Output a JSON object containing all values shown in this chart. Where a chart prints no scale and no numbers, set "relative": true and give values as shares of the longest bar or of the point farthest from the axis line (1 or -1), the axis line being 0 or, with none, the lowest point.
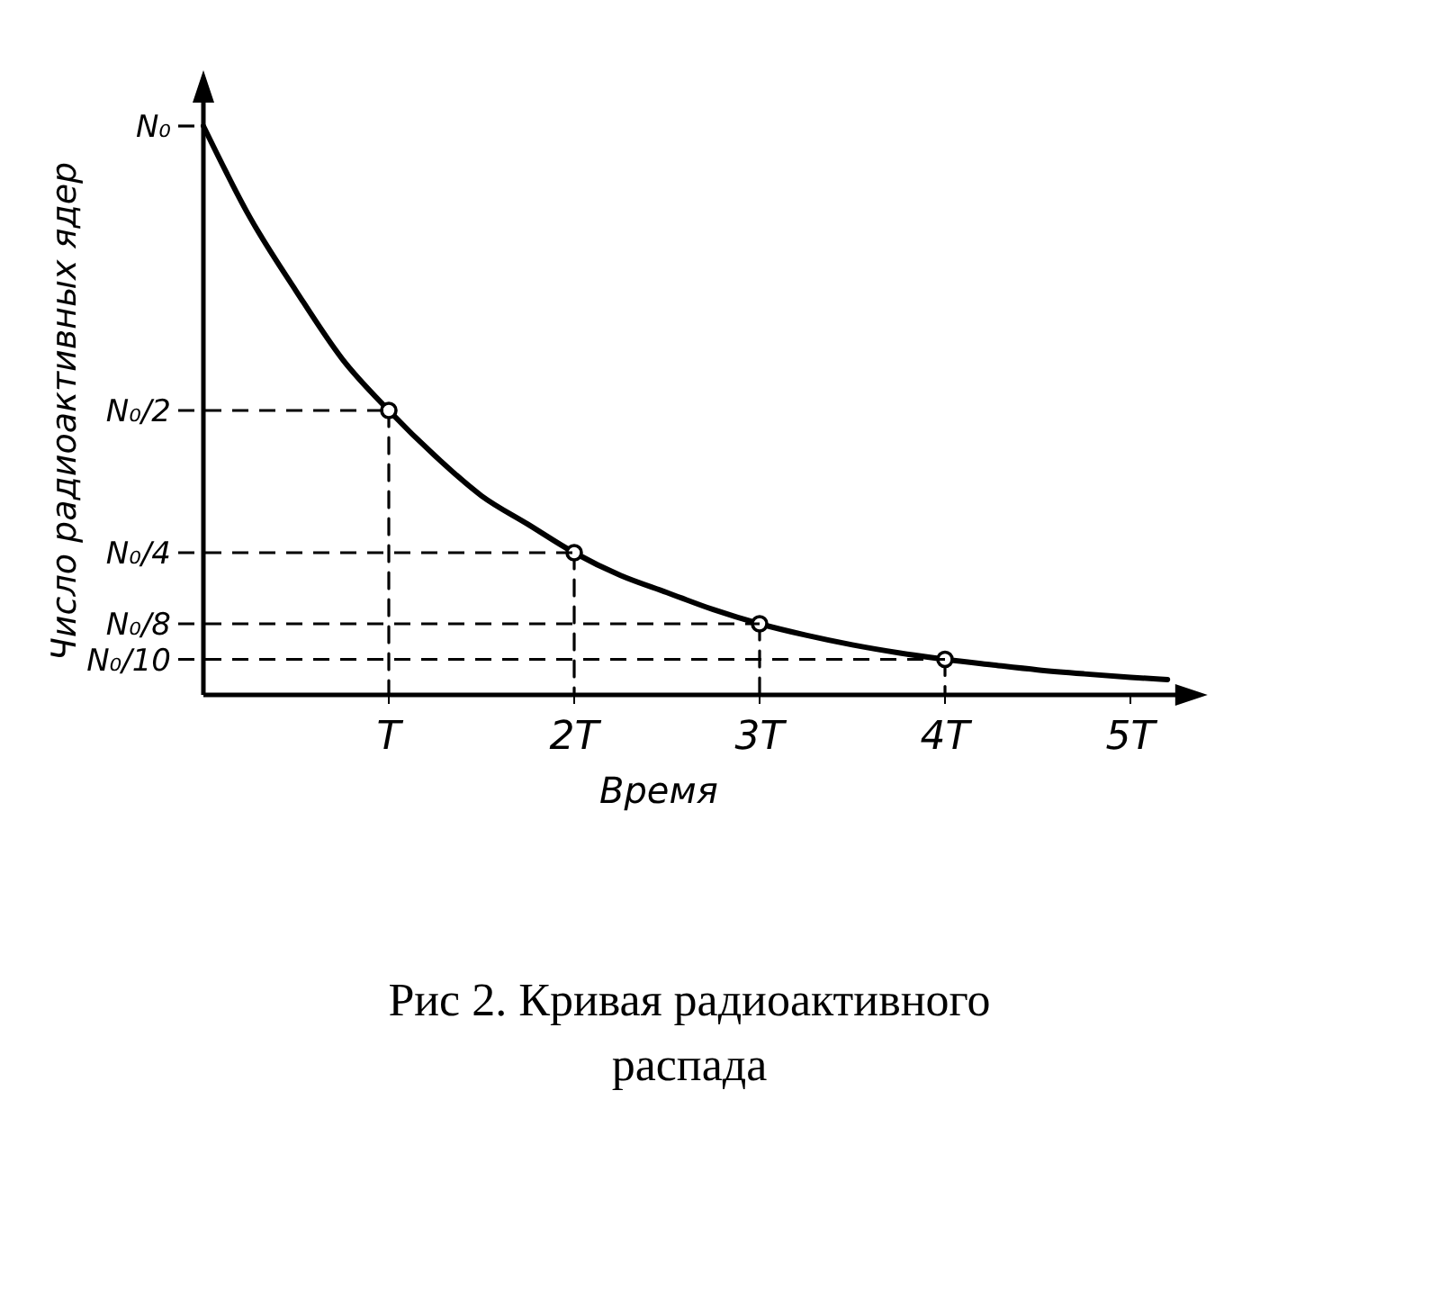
{
  "chart_data": {
    "type": "line",
    "title": "Рис 2. Кривая радиоактивного распада",
    "xlabel": "Время",
    "ylabel": "Число радиоактивных ядер",
    "relative": true,
    "xlim": [
      0,
      5.3
    ],
    "xticks": [
      {
        "value": 1,
        "label": "T"
      },
      {
        "value": 2,
        "label": "2T"
      },
      {
        "value": 3,
        "label": "3T"
      },
      {
        "value": 4,
        "label": "4T"
      },
      {
        "value": 5,
        "label": "5T"
      }
    ],
    "ref_lines": [
      {
        "axis": "y",
        "value": 1,
        "label": "N₀",
        "line_style": "dashed"
      },
      {
        "axis": "y",
        "value": 0.5,
        "label": "N₀/2",
        "line_style": "dashed"
      },
      {
        "axis": "y",
        "value": 0.25,
        "label": "N₀/4",
        "line_style": "dashed"
      },
      {
        "axis": "y",
        "value": 0.125,
        "label": "N₀/8",
        "line_style": "dashed"
      },
      {
        "axis": "y",
        "value": 0.0625,
        "label": "N₀/10",
        "line_style": "dashed"
      }
    ],
    "grid": false,
    "series": [
      {
        "color": "#000000",
        "x": [
          0,
          0.25,
          0.5,
          0.75,
          1,
          1.25,
          1.5,
          1.75,
          2,
          2.25,
          2.5,
          2.75,
          3,
          3.25,
          3.5,
          3.75,
          4,
          4.25,
          4.5,
          4.75,
          5,
          5.2
        ],
        "values": [
          1,
          0.84,
          0.71,
          0.59,
          0.5,
          0.42,
          0.35,
          0.3,
          0.25,
          0.21,
          0.18,
          0.15,
          0.125,
          0.105,
          0.088,
          0.074,
          0.0625,
          0.053,
          0.044,
          0.037,
          0.031,
          0.027
        ]
      },
      {
        "type": "line",
        "line_style": "dashed",
        "color": "#000000",
        "x": [
          1,
          1
        ],
        "values": [
          0.5,
          0
        ]
      },
      {
        "type": "line",
        "line_style": "dashed",
        "color": "#000000",
        "x": [
          2,
          2
        ],
        "values": [
          0.25,
          0
        ]
      },
      {
        "type": "line",
        "line_style": "dashed",
        "color": "#000000",
        "x": [
          3,
          3
        ],
        "values": [
          0.125,
          0
        ]
      },
      {
        "type": "line",
        "line_style": "dashed",
        "color": "#000000",
        "x": [
          4,
          4
        ],
        "values": [
          0.0625,
          0
        ]
      },
      {
        "type": "scatter",
        "marker": "circle",
        "color": "#000000",
        "x": [
          1,
          2,
          3,
          4
        ],
        "values": [
          0.5,
          0.25,
          0.125,
          0.0625
        ]
      }
    ]
  }
}
